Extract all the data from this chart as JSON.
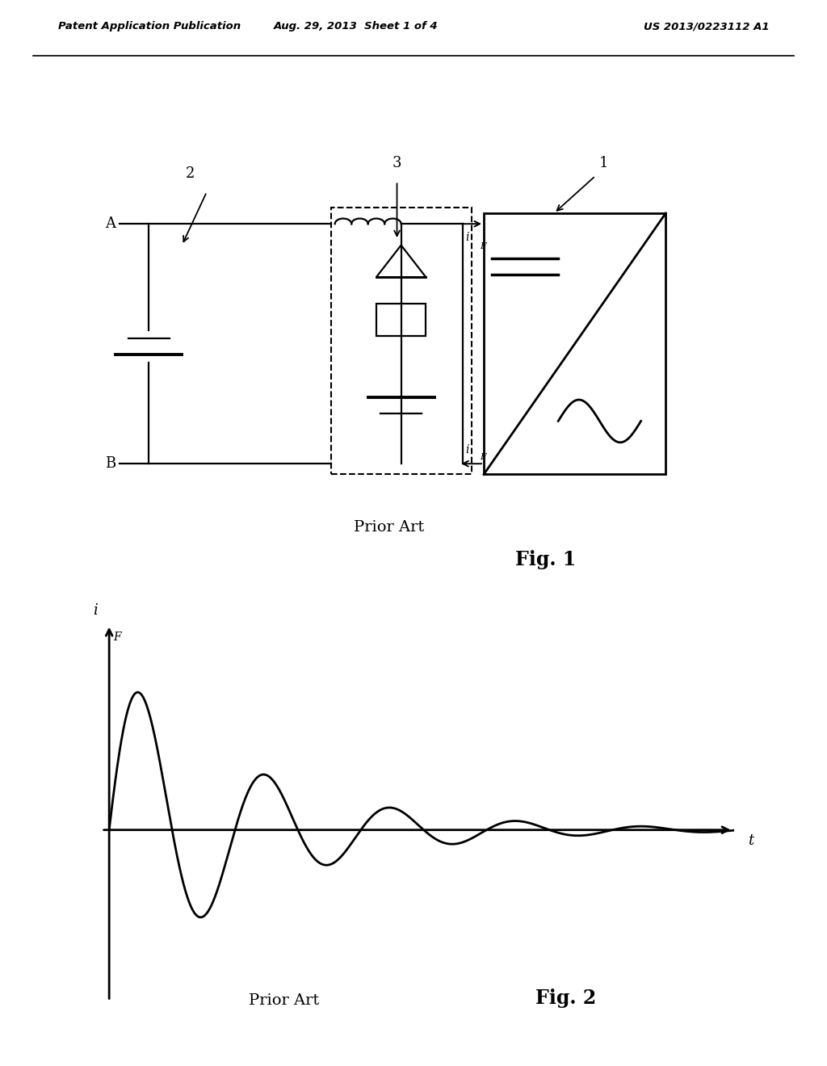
{
  "bg_color": "#ffffff",
  "header_left": "Patent Application Publication",
  "header_mid": "Aug. 29, 2013  Sheet 1 of 4",
  "header_right": "US 2013/0223112 A1",
  "fig1_label": "Fig. 1",
  "fig1_prior_art": "Prior Art",
  "fig2_label": "Fig. 2",
  "fig2_prior_art": "Prior Art"
}
